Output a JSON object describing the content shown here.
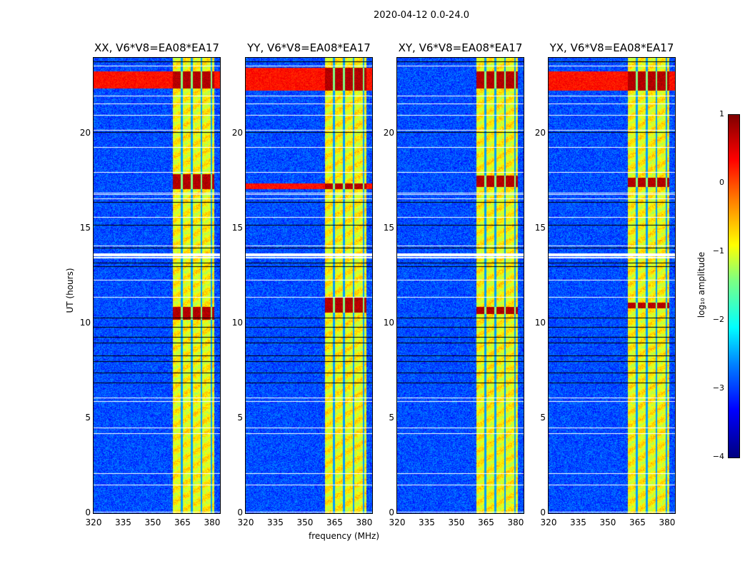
{
  "title": "2020-04-12 0.0-24.0",
  "chart_data": {
    "type": "heatmap",
    "title": "2020-04-12 0.0-24.0",
    "xlabel": "frequency (MHz)",
    "ylabel": "UT (hours)",
    "xlim": [
      320,
      384
    ],
    "ylim": [
      0,
      24
    ],
    "xticks": [
      "320",
      "335",
      "350",
      "365",
      "380"
    ],
    "yticks": [
      "0",
      "5",
      "10",
      "15",
      "20"
    ],
    "panels": [
      {
        "title": "XX, V6*V8=EA08*EA17",
        "strong_rows": [
          [
            22.4,
            23.3,
            "full"
          ],
          [
            17.1,
            17.9,
            "band"
          ],
          [
            10.2,
            10.9,
            "band"
          ]
        ],
        "extra_lines": [
          0.0
        ]
      },
      {
        "title": "YY, V6*V8=EA08*EA17",
        "strong_rows": [
          [
            22.3,
            23.5,
            "full"
          ],
          [
            17.1,
            17.4,
            "full"
          ],
          [
            10.6,
            11.4,
            "band"
          ]
        ],
        "extra_lines": [
          0.3
        ]
      },
      {
        "title": "XY, V6*V8=EA08*EA17",
        "strong_rows": [
          [
            22.4,
            23.3,
            "band"
          ],
          [
            17.2,
            17.8,
            "band"
          ],
          [
            10.5,
            10.9,
            "band"
          ]
        ],
        "extra_lines": [
          0.6
        ]
      },
      {
        "title": "YX, V6*V8=EA08*EA17",
        "strong_rows": [
          [
            22.3,
            23.3,
            "full"
          ],
          [
            17.2,
            17.7,
            "band"
          ],
          [
            10.8,
            11.1,
            "band"
          ]
        ],
        "extra_lines": [
          0.9
        ]
      }
    ],
    "background_level": -3.0,
    "rfi_band_mhz": [
      360,
      381
    ],
    "rfi_band_level": -0.9,
    "band_gaps_mhz": [
      364.5,
      369.5,
      374.5,
      379.5
    ],
    "flagged_hours": [
      1.5,
      2.1,
      4.2,
      4.5,
      5.9,
      6.1,
      11.4,
      12.3,
      13.5,
      13.6,
      13.7,
      14.1,
      15.6,
      16.6,
      16.8,
      16.9,
      18.0,
      19.3,
      20.2,
      21.0,
      21.6,
      22.0,
      23.6
    ],
    "dark_rows_hours": [
      6.9,
      7.4,
      8.0,
      8.3,
      9.0,
      9.3,
      9.8,
      10.3,
      13.0,
      13.2,
      14.0,
      15.2,
      16.4,
      20.1,
      23.8
    ],
    "colorbar": {
      "label": "log₁₀ amplitude",
      "range": [
        -4,
        1
      ],
      "ticks": [
        "1",
        "0",
        "−1",
        "−2",
        "−3",
        "−4"
      ],
      "colormap": "jet"
    }
  }
}
